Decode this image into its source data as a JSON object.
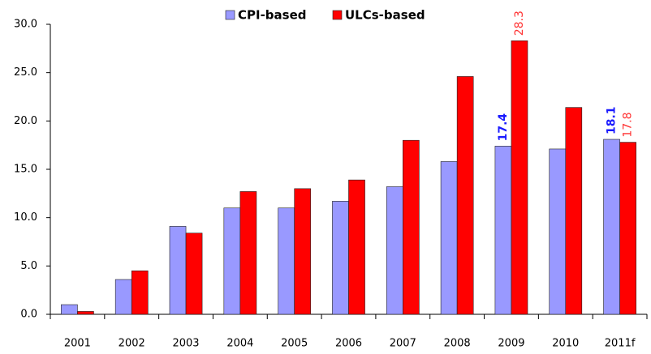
{
  "chart_data": {
    "type": "bar",
    "categories": [
      "2001",
      "2002",
      "2003",
      "2004",
      "2005",
      "2006",
      "2007",
      "2008",
      "2009",
      "2010",
      "2011f"
    ],
    "series": [
      {
        "name": "CPI-based",
        "color": "#9999ff",
        "label_color": "#1a1aff",
        "values": [
          1.0,
          3.6,
          9.1,
          11.0,
          11.0,
          11.7,
          13.2,
          15.8,
          17.4,
          17.1,
          18.1
        ],
        "value_labels": [
          null,
          null,
          null,
          null,
          null,
          null,
          null,
          null,
          "17.4",
          null,
          "18.1"
        ]
      },
      {
        "name": "ULCs-based",
        "color": "#ff0000",
        "label_color": "#ff3333",
        "values": [
          0.3,
          4.5,
          8.4,
          12.7,
          13.0,
          13.9,
          18.0,
          24.6,
          28.3,
          21.4,
          17.8
        ],
        "value_labels": [
          null,
          null,
          null,
          null,
          null,
          null,
          null,
          null,
          "28.3",
          null,
          "17.8"
        ]
      }
    ],
    "ylim": [
      0,
      30
    ],
    "yticks": [
      {
        "value": 0,
        "label": "0.0"
      },
      {
        "value": 5,
        "label": "5.0"
      },
      {
        "value": 10,
        "label": "10.0"
      },
      {
        "value": 15,
        "label": "15.0"
      },
      {
        "value": 20,
        "label": "20.0"
      },
      {
        "value": 25,
        "label": "25.0"
      },
      {
        "value": 30,
        "label": "30.0"
      }
    ],
    "grid": false,
    "legend": "top"
  }
}
